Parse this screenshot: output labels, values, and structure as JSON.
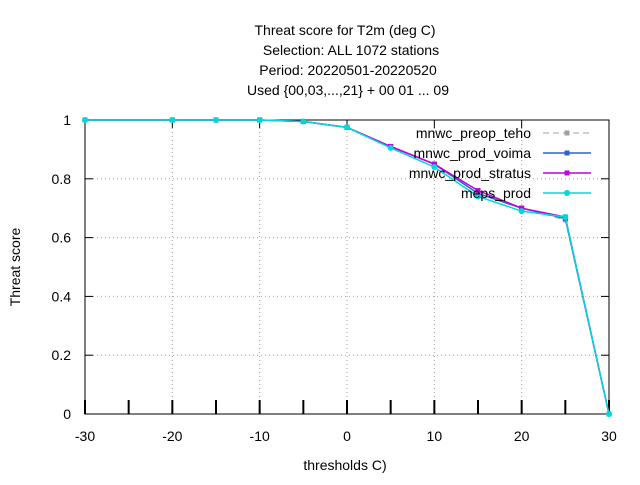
{
  "chart_data": {
    "type": "line",
    "title_lines": [
      "Threat score  for T2m (deg C)",
      "Selection: ALL    1072 stations",
      "Period: 20220501-20220520",
      "Used {00,03,...,21} + 00 01 ... 09"
    ],
    "xlabel": "thresholds C)",
    "ylabel": "Threat score",
    "xlim": [
      -30,
      30
    ],
    "ylim": [
      0,
      1
    ],
    "x_ticks": [
      -30,
      -20,
      -10,
      0,
      10,
      20,
      30
    ],
    "y_ticks": [
      0,
      0.2,
      0.4,
      0.6,
      0.8,
      1
    ],
    "grid": true,
    "legend_position": "top-right",
    "series": [
      {
        "name": "mnwc_preop_teho",
        "color": "#a0a0a0",
        "dashed": true,
        "x": [
          -30,
          -20,
          -15,
          -10,
          -5,
          0,
          5,
          10,
          15,
          20,
          25,
          30
        ],
        "values": [
          1.0,
          1.0,
          1.0,
          1.0,
          0.995,
          0.975,
          0.91,
          0.85,
          0.75,
          0.7,
          0.66,
          0.0
        ]
      },
      {
        "name": "mnwc_prod_voima",
        "color": "#3060d0",
        "dashed": false,
        "x": [
          -30,
          -20,
          -15,
          -10,
          -5,
          0,
          5,
          10,
          15,
          20,
          25,
          30
        ],
        "values": [
          1.0,
          1.0,
          1.0,
          1.0,
          0.995,
          0.975,
          0.91,
          0.85,
          0.75,
          0.7,
          0.665,
          0.0
        ]
      },
      {
        "name": "mnwc_prod_stratus",
        "color": "#c000e0",
        "dashed": false,
        "x": [
          -30,
          -20,
          -15,
          -10,
          -5,
          0,
          5,
          10,
          15,
          20,
          25,
          30
        ],
        "values": [
          1.0,
          1.0,
          1.0,
          1.0,
          0.995,
          0.975,
          0.91,
          0.85,
          0.76,
          0.7,
          0.67,
          0.0
        ]
      },
      {
        "name": "meps_prod",
        "color": "#00d8d8",
        "dashed": false,
        "x": [
          -30,
          -20,
          -15,
          -10,
          -5,
          0,
          5,
          10,
          15,
          20,
          25,
          30
        ],
        "values": [
          1.0,
          1.0,
          1.0,
          1.0,
          0.995,
          0.975,
          0.905,
          0.84,
          0.74,
          0.69,
          0.67,
          0.0
        ]
      }
    ]
  }
}
